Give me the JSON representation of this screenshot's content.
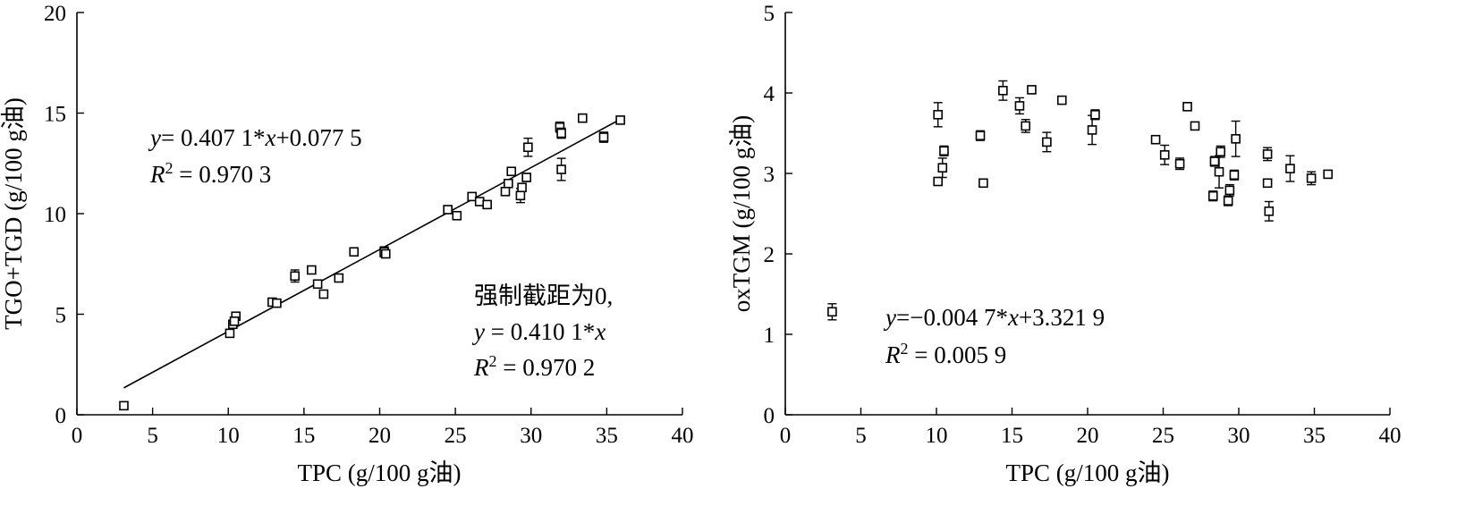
{
  "chart_data": [
    {
      "type": "scatter",
      "xlabel": "TPC (g/100 g油)",
      "ylabel": "TGO+TGD (g/100 g油)",
      "xlim": [
        0,
        40
      ],
      "ylim": [
        0,
        20
      ],
      "xticks": [
        0,
        5,
        10,
        15,
        20,
        25,
        30,
        35,
        40
      ],
      "yticks": [
        0,
        5,
        10,
        15,
        20
      ],
      "annotations": {
        "equation_1": {
          "prefix": "y",
          "text": "= 0.407 1*",
          "var": "x",
          "suffix": "+0.077 5"
        },
        "r2_1": {
          "label": "R",
          "sup": "2",
          "text": " = 0.970 3"
        },
        "note": "强制截距为0,",
        "equation_2": {
          "prefix": "y",
          "text": " = 0.410 1*",
          "var": "x"
        },
        "r2_2": {
          "label": "R",
          "sup": "2",
          "text": " = 0.970 2"
        }
      },
      "fit_line": {
        "slope": 0.4071,
        "intercept": 0.0775,
        "x_range": [
          3.1,
          36
        ]
      },
      "points": [
        {
          "x": 3.1,
          "y": 0.45,
          "err": 0.05
        },
        {
          "x": 10.1,
          "y": 4.05,
          "err": 0.15
        },
        {
          "x": 10.3,
          "y": 4.5,
          "err": 0.15
        },
        {
          "x": 10.5,
          "y": 4.9,
          "err": 0.15
        },
        {
          "x": 10.4,
          "y": 4.65,
          "err": 0.1
        },
        {
          "x": 12.9,
          "y": 5.6,
          "err": 0.05
        },
        {
          "x": 13.2,
          "y": 5.55,
          "err": 0.05
        },
        {
          "x": 14.4,
          "y": 6.9,
          "err": 0.3
        },
        {
          "x": 15.5,
          "y": 7.2,
          "err": 0.1
        },
        {
          "x": 15.9,
          "y": 6.5,
          "err": 0.1
        },
        {
          "x": 16.3,
          "y": 6.0,
          "err": 0.05
        },
        {
          "x": 17.3,
          "y": 6.8,
          "err": 0.1
        },
        {
          "x": 18.3,
          "y": 8.1,
          "err": 0.1
        },
        {
          "x": 20.3,
          "y": 8.1,
          "err": 0.25
        },
        {
          "x": 20.4,
          "y": 8.0,
          "err": 0.1
        },
        {
          "x": 24.5,
          "y": 10.2,
          "err": 0.05
        },
        {
          "x": 25.1,
          "y": 9.9,
          "err": 0.1
        },
        {
          "x": 26.1,
          "y": 10.85,
          "err": 0.1
        },
        {
          "x": 26.6,
          "y": 10.6,
          "err": 0.1
        },
        {
          "x": 27.1,
          "y": 10.45,
          "err": 0.1
        },
        {
          "x": 28.3,
          "y": 11.1,
          "err": 0.2
        },
        {
          "x": 28.5,
          "y": 11.5,
          "err": 0.2
        },
        {
          "x": 28.7,
          "y": 12.1,
          "err": 0.2
        },
        {
          "x": 29.3,
          "y": 10.9,
          "err": 0.35
        },
        {
          "x": 29.4,
          "y": 11.3,
          "err": 0.2
        },
        {
          "x": 29.7,
          "y": 11.8,
          "err": 0.2
        },
        {
          "x": 29.8,
          "y": 13.3,
          "err": 0.45
        },
        {
          "x": 31.9,
          "y": 14.3,
          "err": 0.25
        },
        {
          "x": 32.0,
          "y": 14.0,
          "err": 0.25
        },
        {
          "x": 32.0,
          "y": 12.2,
          "err": 0.55
        },
        {
          "x": 33.4,
          "y": 14.75,
          "err": 0.2
        },
        {
          "x": 34.8,
          "y": 13.8,
          "err": 0.25
        },
        {
          "x": 35.9,
          "y": 14.65,
          "err": 0.1
        }
      ]
    },
    {
      "type": "scatter",
      "xlabel": "TPC (g/100 g油)",
      "ylabel": "oxTGM (g/100 g油)",
      "xlim": [
        0,
        40
      ],
      "ylim": [
        0,
        5
      ],
      "xticks": [
        0,
        5,
        10,
        15,
        20,
        25,
        30,
        35,
        40
      ],
      "yticks": [
        0,
        1,
        2,
        3,
        4,
        5
      ],
      "annotations": {
        "equation_1": {
          "prefix": "y",
          "text": "=−0.004 7*",
          "var": "x",
          "suffix": "+3.321 9"
        },
        "r2_1": {
          "label": "R",
          "sup": "2",
          "text": " = 0.005 9"
        }
      },
      "points": [
        {
          "x": 3.1,
          "y": 1.28,
          "err": 0.1
        },
        {
          "x": 10.1,
          "y": 2.9,
          "err": 0.03
        },
        {
          "x": 10.1,
          "y": 3.73,
          "err": 0.15
        },
        {
          "x": 10.4,
          "y": 3.07,
          "err": 0.12
        },
        {
          "x": 10.5,
          "y": 3.28,
          "err": 0.06
        },
        {
          "x": 12.9,
          "y": 3.47,
          "err": 0.06
        },
        {
          "x": 13.1,
          "y": 2.88,
          "err": 0.03
        },
        {
          "x": 14.4,
          "y": 4.03,
          "err": 0.12
        },
        {
          "x": 15.5,
          "y": 3.84,
          "err": 0.1
        },
        {
          "x": 15.9,
          "y": 3.59,
          "err": 0.08
        },
        {
          "x": 16.3,
          "y": 4.04,
          "err": 0.03
        },
        {
          "x": 17.3,
          "y": 3.39,
          "err": 0.12
        },
        {
          "x": 18.3,
          "y": 3.91,
          "err": 0.04
        },
        {
          "x": 20.3,
          "y": 3.54,
          "err": 0.18
        },
        {
          "x": 20.5,
          "y": 3.73,
          "err": 0.06
        },
        {
          "x": 24.5,
          "y": 3.42,
          "err": 0.03
        },
        {
          "x": 25.1,
          "y": 3.23,
          "err": 0.12
        },
        {
          "x": 26.1,
          "y": 3.12,
          "err": 0.07
        },
        {
          "x": 26.6,
          "y": 3.83,
          "err": 0.03
        },
        {
          "x": 27.1,
          "y": 3.59,
          "err": 0.03
        },
        {
          "x": 28.3,
          "y": 2.72,
          "err": 0.06
        },
        {
          "x": 28.4,
          "y": 3.15,
          "err": 0.06
        },
        {
          "x": 28.7,
          "y": 3.02,
          "err": 0.2
        },
        {
          "x": 28.8,
          "y": 3.27,
          "err": 0.07
        },
        {
          "x": 29.3,
          "y": 2.66,
          "err": 0.06
        },
        {
          "x": 29.4,
          "y": 2.79,
          "err": 0.07
        },
        {
          "x": 29.7,
          "y": 2.98,
          "err": 0.06
        },
        {
          "x": 29.8,
          "y": 3.43,
          "err": 0.22
        },
        {
          "x": 31.9,
          "y": 3.24,
          "err": 0.08
        },
        {
          "x": 31.9,
          "y": 2.88,
          "err": 0.03
        },
        {
          "x": 32.0,
          "y": 2.53,
          "err": 0.12
        },
        {
          "x": 33.4,
          "y": 3.06,
          "err": 0.16
        },
        {
          "x": 34.8,
          "y": 2.94,
          "err": 0.08
        },
        {
          "x": 35.9,
          "y": 2.99,
          "err": 0.03
        }
      ]
    }
  ]
}
